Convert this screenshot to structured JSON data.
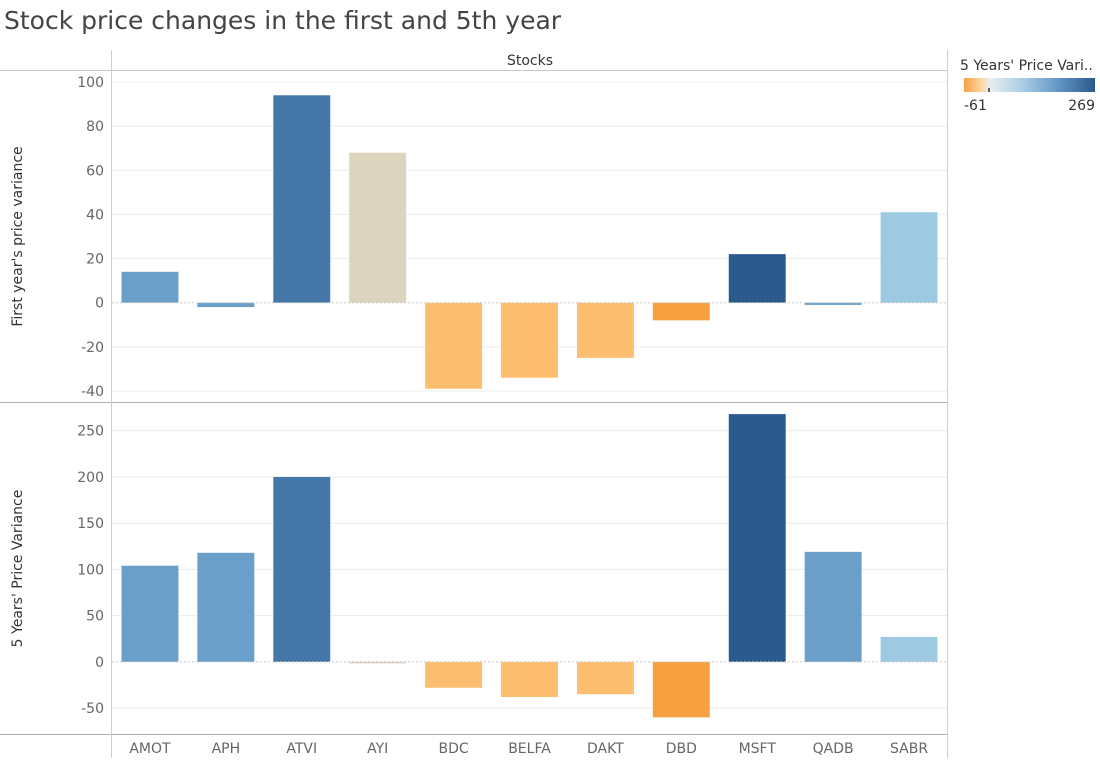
{
  "chart_data": {
    "type": "bar",
    "title": "Stock price changes in the first and 5th year",
    "column_header": "Stocks",
    "categories": [
      "AMOT",
      "APH",
      "ATVI",
      "AYI",
      "BDC",
      "BELFA",
      "DAKT",
      "DBD",
      "MSFT",
      "QADB",
      "SABR"
    ],
    "color_measure": "5 Years' Price Variance",
    "panels": [
      {
        "name": "first-year",
        "ylabel": "First year's price variance",
        "ylim": [
          -45,
          105
        ],
        "yticks": [
          100,
          80,
          60,
          40,
          20,
          0,
          -20,
          -40
        ],
        "values": [
          14,
          -2,
          94,
          68,
          -39,
          -34,
          -25,
          -8,
          22,
          -1,
          41
        ]
      },
      {
        "name": "five-year",
        "ylabel": "5 Years' Price Variance",
        "ylim": [
          -78,
          280
        ],
        "yticks": [
          250,
          200,
          150,
          100,
          50,
          0,
          -50
        ],
        "values": [
          104,
          118,
          200,
          -1,
          -28,
          -38,
          -35,
          -60,
          268,
          119,
          27
        ]
      }
    ],
    "legend": {
      "title": "5 Years' Price Vari..",
      "min_label": "-61",
      "max_label": "269",
      "min": -61,
      "max": 269
    },
    "colors": {
      "orange_dark": "#f7a040",
      "orange_light": "#fdbf6f",
      "neutral": "#ddd4c0",
      "blue_light": "#9ec9e2",
      "blue_mid": "#6a9fca",
      "blue_dark": "#2a5a8b"
    }
  }
}
